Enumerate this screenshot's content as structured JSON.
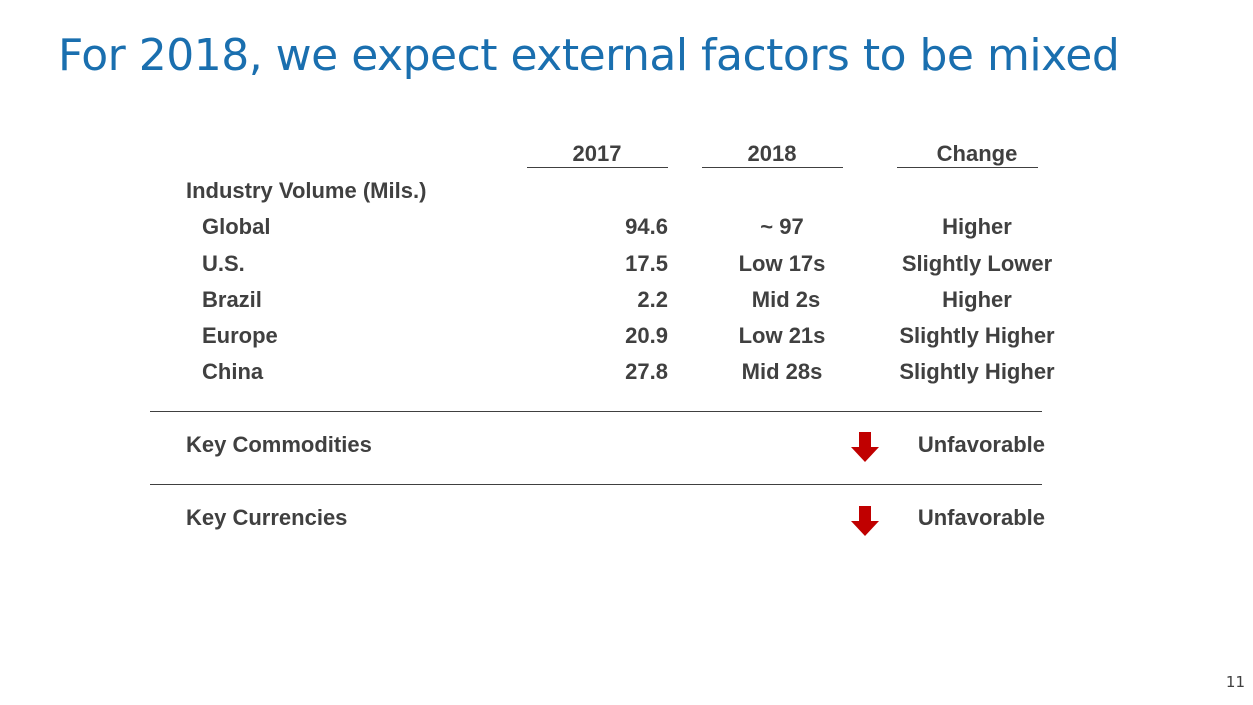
{
  "title": "For 2018, we expect external factors to be mixed",
  "columns": {
    "c2017": "2017",
    "c2018": "2018",
    "change": "Change"
  },
  "section_label": "Industry Volume (Mils.)",
  "rows": [
    {
      "label": "Global",
      "v2017": "94.6",
      "v2018": "~ 97",
      "change": "Higher"
    },
    {
      "label": "U.S.",
      "v2017": "17.5",
      "v2018": "Low 17s",
      "change": "Slightly Lower"
    },
    {
      "label": "Brazil",
      "v2017": "2.2",
      "v2018": "Mid 2s",
      "change": "Higher"
    },
    {
      "label": "Europe",
      "v2017": "20.9",
      "v2018": "Low 21s",
      "change": "Slightly Higher"
    },
    {
      "label": "China",
      "v2017": "27.8",
      "v2018": "Mid 28s",
      "change": "Slightly Higher"
    }
  ],
  "commodities": {
    "label": "Key Commodities",
    "status": "Unfavorable",
    "icon": "down-arrow-icon",
    "color": "#c00000"
  },
  "currencies": {
    "label": "Key Currencies",
    "status": "Unfavorable",
    "icon": "down-arrow-icon",
    "color": "#c00000"
  },
  "page_number": "11"
}
